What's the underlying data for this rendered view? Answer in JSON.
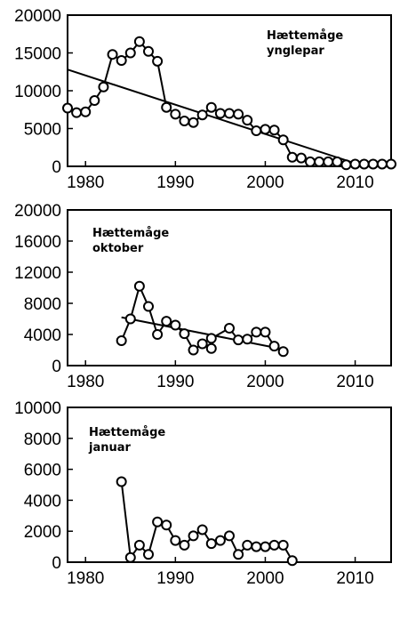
{
  "chart_data": [
    {
      "type": "line",
      "title": "Hættemåge\nynglepar",
      "title_lines": [
        "Hættemåge",
        "ynglepar"
      ],
      "xlim": [
        1978,
        2014
      ],
      "ylim": [
        0,
        20000
      ],
      "xticks": [
        1980,
        1990,
        2000,
        2010
      ],
      "xtick_labels": [
        "1980",
        "1990",
        "2000",
        "2010"
      ],
      "yticks": [
        0,
        5000,
        10000,
        15000,
        20000
      ],
      "ytick_labels": [
        "0",
        "5000",
        "10000",
        "15000",
        "20000"
      ],
      "grid": false,
      "series": [
        {
          "x": [
            1978,
            1979,
            1980,
            1981,
            1982,
            1983,
            1984,
            1985,
            1986,
            1987,
            1988,
            1989,
            1990,
            1991,
            1992,
            1993,
            1994,
            1995,
            1996,
            1997,
            1998,
            1999,
            2000,
            2001,
            2002,
            2003,
            2004,
            2005,
            2006,
            2007,
            2008,
            2009,
            2010,
            2011,
            2012,
            2013,
            2014
          ],
          "y": [
            7700,
            7100,
            7200,
            8700,
            10500,
            14800,
            14000,
            15000,
            16500,
            15200,
            13900,
            7800,
            6900,
            6000,
            5800,
            6800,
            7800,
            7000,
            7000,
            6900,
            6100,
            4700,
            4900,
            4800,
            3500,
            1200,
            1100,
            600,
            600,
            600,
            600,
            200,
            300,
            300,
            300,
            300,
            300
          ]
        }
      ],
      "trendline": {
        "x": [
          1978,
          2010
        ],
        "y": [
          12800,
          400
        ]
      }
    },
    {
      "type": "line",
      "title": "Hættemåge\noktober",
      "title_lines": [
        "Hættemåge",
        "oktober"
      ],
      "xlim": [
        1978,
        2014
      ],
      "ylim": [
        0,
        20000
      ],
      "xticks": [
        1980,
        1990,
        2000,
        2010
      ],
      "xtick_labels": [
        "1980",
        "1990",
        "2000",
        "2010"
      ],
      "yticks": [
        0,
        4000,
        8000,
        12000,
        16000,
        20000
      ],
      "ytick_labels": [
        "0",
        "4000",
        "8000",
        "12000",
        "16000",
        "20000"
      ],
      "grid": false,
      "series": [
        {
          "x": [
            1984,
            1985,
            1986,
            1987,
            1988,
            1989,
            1990,
            1991,
            1992,
            1993,
            1994,
            1994,
            1996,
            1997,
            1998,
            1999,
            2000,
            2001,
            2002
          ],
          "y": [
            3200,
            6000,
            10200,
            7600,
            4000,
            5700,
            5200,
            4100,
            2000,
            2800,
            2200,
            3500,
            4800,
            3300,
            3400,
            4300,
            4300,
            2500,
            1800
          ]
        }
      ],
      "trendline": {
        "x": [
          1984,
          2002
        ],
        "y": [
          6200,
          2100
        ]
      }
    },
    {
      "type": "line",
      "title": "Hættemåge\njanuar",
      "title_lines": [
        "Hættemåge",
        "januar"
      ],
      "xlim": [
        1978,
        2014
      ],
      "ylim": [
        0,
        10000
      ],
      "xticks": [
        1980,
        1990,
        2000,
        2010
      ],
      "xtick_labels": [
        "1980",
        "1990",
        "2000",
        "2010"
      ],
      "yticks": [
        0,
        2000,
        4000,
        6000,
        8000,
        10000
      ],
      "ytick_labels": [
        "0",
        "2000",
        "4000",
        "6000",
        "8000",
        "10000"
      ],
      "grid": false,
      "series": [
        {
          "x": [
            1984,
            1985,
            1986,
            1987,
            1988,
            1989,
            1990,
            1991,
            1992,
            1993,
            1994,
            1995,
            1996,
            1997,
            1998,
            1999,
            2000,
            2001,
            2002,
            2003
          ],
          "y": [
            5200,
            300,
            1100,
            500,
            2600,
            2400,
            1400,
            1100,
            1700,
            2100,
            1200,
            1400,
            1700,
            500,
            1100,
            1000,
            1000,
            1100,
            1100,
            100
          ]
        }
      ]
    }
  ]
}
